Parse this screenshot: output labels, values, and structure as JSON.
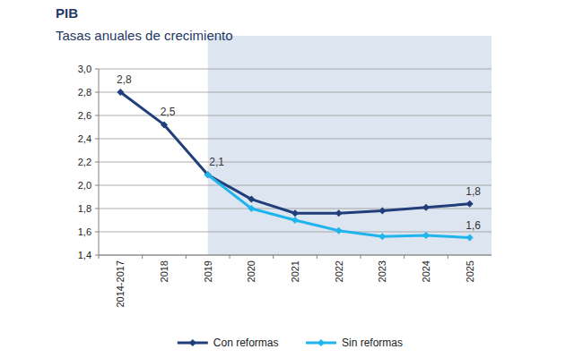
{
  "chart_data": {
    "type": "line",
    "title": "PIB",
    "subtitle": "Tasas anuales de crecimiento",
    "categories": [
      "2014-2017",
      "2018",
      "2019",
      "2020",
      "2021",
      "2022",
      "2023",
      "2024",
      "2025"
    ],
    "series": [
      {
        "name": "Con reformas",
        "color": "#203f7a",
        "marker": "diamond",
        "values": [
          2.8,
          2.52,
          2.09,
          1.88,
          1.76,
          1.76,
          1.78,
          1.81,
          1.84
        ],
        "value_labels": [
          "2,8",
          "2,5",
          "2,1",
          null,
          null,
          null,
          null,
          null,
          "1,8"
        ]
      },
      {
        "name": "Sin reformas",
        "color": "#1fb5ec",
        "marker": "diamond",
        "values": [
          null,
          null,
          2.09,
          1.8,
          1.7,
          1.61,
          1.56,
          1.57,
          1.55
        ],
        "value_labels": [
          null,
          null,
          null,
          null,
          null,
          null,
          null,
          null,
          "1,6"
        ]
      }
    ],
    "ylim": [
      1.4,
      3.0
    ],
    "yticks": [
      {
        "value": 1.4,
        "label": "1,4"
      },
      {
        "value": 1.6,
        "label": "1,6"
      },
      {
        "value": 1.8,
        "label": "1,8"
      },
      {
        "value": 2.0,
        "label": "2,0"
      },
      {
        "value": 2.2,
        "label": "2,2"
      },
      {
        "value": 2.4,
        "label": "2,4"
      },
      {
        "value": 2.6,
        "label": "2,6"
      },
      {
        "value": 2.8,
        "label": "2,8"
      },
      {
        "value": 3.0,
        "label": "3,0"
      }
    ],
    "grid": true,
    "data_labels": true,
    "legend": "bottom",
    "shaded_region": {
      "from": "2019",
      "to": "2025",
      "color": "#dde5f0"
    }
  }
}
